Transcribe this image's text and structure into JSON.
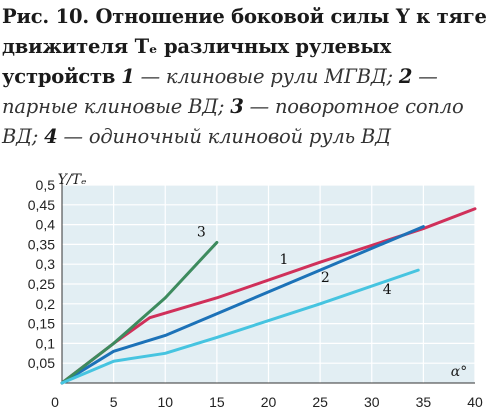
{
  "caption": {
    "title": "Рис. 10. Отношение боковой силы Y к тяге движителя Tₑ различных рулевых устройств",
    "items": [
      {
        "num": "1",
        "text": " — клиновые рули МГВД; "
      },
      {
        "num": "2",
        "text": " — парные клиновые ВД; "
      },
      {
        "num": "3",
        "text": " — поворотное сопло ВД; "
      },
      {
        "num": "4",
        "text": " — одиночный клиновой руль ВД"
      }
    ]
  },
  "chart_data": {
    "type": "line",
    "xlabel": "α°",
    "ylabel": "Y/Tₑ",
    "xlim": [
      0,
      40
    ],
    "ylim": [
      0,
      0.5
    ],
    "x_ticks": [
      "5",
      "10",
      "15",
      "20",
      "25",
      "30",
      "35",
      "40"
    ],
    "y_ticks": [
      "0,05",
      "0,1",
      "0,15",
      "0,2",
      "0,25",
      "0,3",
      "0,35",
      "0,4",
      "0,45",
      "0,5"
    ],
    "grid": true,
    "series": [
      {
        "name": "1",
        "color": "#d0305a",
        "x": [
          0,
          5,
          8.5,
          15,
          25,
          35,
          40
        ],
        "y": [
          0,
          0.1,
          0.165,
          0.215,
          0.305,
          0.39,
          0.44
        ]
      },
      {
        "name": "2",
        "color": "#1c72b8",
        "x": [
          0,
          5,
          10,
          15,
          25,
          35
        ],
        "y": [
          0,
          0.08,
          0.12,
          0.175,
          0.285,
          0.395
        ]
      },
      {
        "name": "3",
        "color": "#3d8b5e",
        "x": [
          0,
          5,
          10,
          15
        ],
        "y": [
          0,
          0.1,
          0.215,
          0.355
        ]
      },
      {
        "name": "4",
        "color": "#46c4e0",
        "x": [
          0,
          5,
          10,
          15,
          25,
          34.5
        ],
        "y": [
          0,
          0.055,
          0.075,
          0.115,
          0.2,
          0.285
        ]
      }
    ],
    "label_positions": [
      {
        "text": "1",
        "x": 21.5,
        "y": 0.3
      },
      {
        "text": "2",
        "x": 25.5,
        "y": 0.255
      },
      {
        "text": "3",
        "x": 13.5,
        "y": 0.37
      },
      {
        "text": "4",
        "x": 31.5,
        "y": 0.225
      }
    ]
  }
}
